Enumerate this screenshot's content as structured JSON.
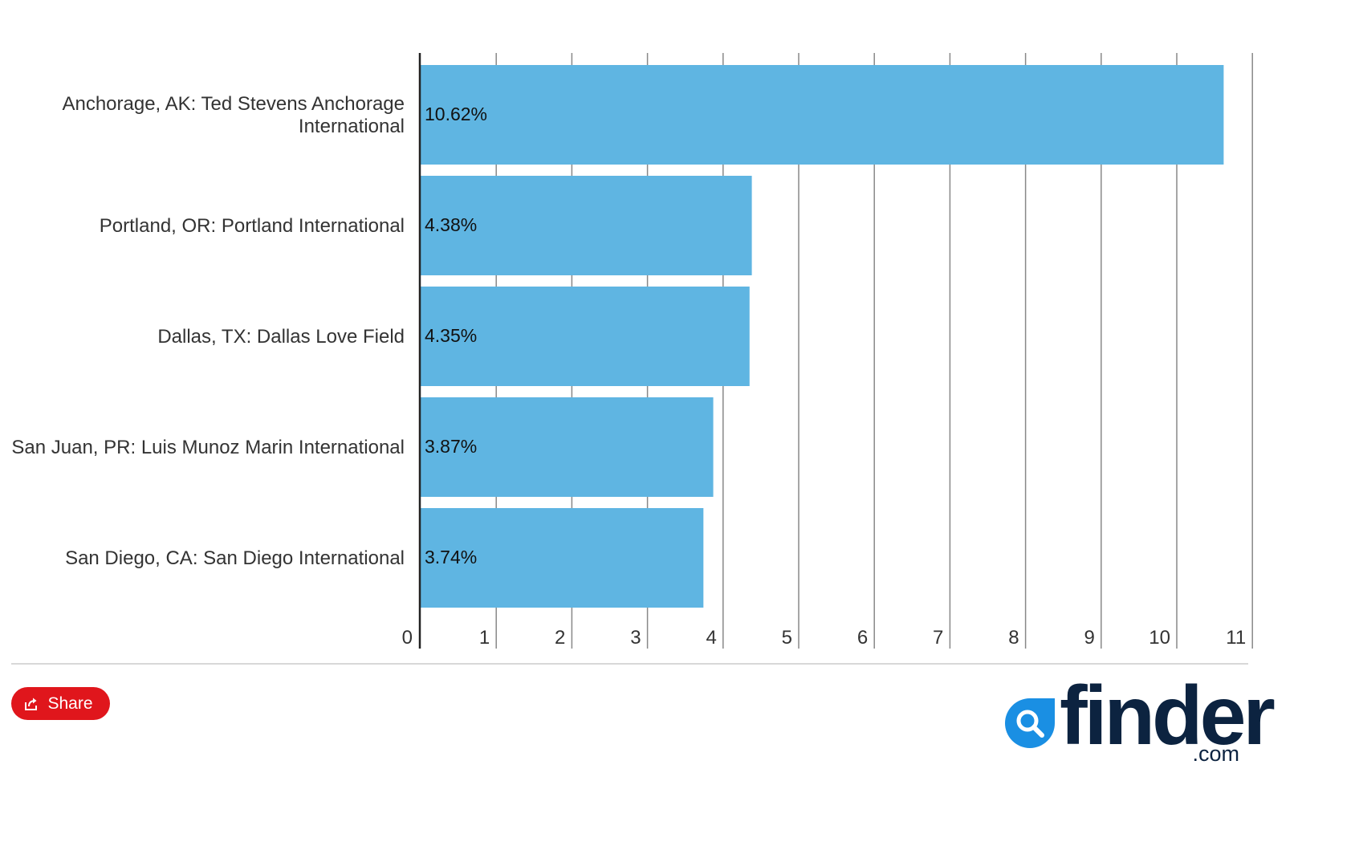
{
  "chart_data": {
    "type": "bar",
    "orientation": "horizontal",
    "title": "",
    "xlabel": "",
    "ylabel": "",
    "categories": [
      [
        "Anchorage, AK: Ted Stevens Anchorage",
        "International"
      ],
      [
        "Portland, OR: Portland International"
      ],
      [
        "Dallas, TX: Dallas Love Field"
      ],
      [
        "San Juan, PR: Luis Munoz Marin International"
      ],
      [
        "San Diego, CA: San Diego International"
      ]
    ],
    "values": [
      10.62,
      4.38,
      4.35,
      3.87,
      3.74
    ],
    "data_labels": [
      "10.62%",
      "4.38%",
      "4.35%",
      "3.87%",
      "3.74%"
    ],
    "xlim": [
      0,
      11
    ],
    "x_ticks": [
      0,
      1,
      2,
      3,
      4,
      5,
      6,
      7,
      8,
      9,
      10,
      11
    ],
    "grid": true,
    "legend": "none",
    "bar_color": "#5fb5e2",
    "grid_color": "#888888",
    "axis_color": "#222222"
  },
  "footer": {
    "share_label": "Share",
    "share_icon": "share-icon",
    "share_color": "#e0161c"
  },
  "brand": {
    "name": "finder",
    "tld": ".com",
    "mark_icon": "magnifier-icon",
    "mark_color": "#1a8fe3",
    "text_color": "#0c2340"
  }
}
